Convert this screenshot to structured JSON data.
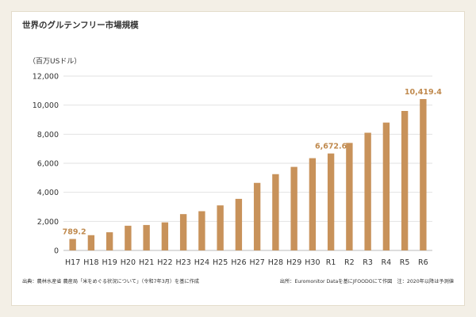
{
  "chart_data": {
    "type": "bar",
    "title": "世界のグルテンフリー市場規模",
    "ylabel": "（百万USドル）",
    "xlabel": "",
    "ylim": [
      0,
      12000
    ],
    "yticks": [
      0,
      2000,
      4000,
      6000,
      8000,
      10000,
      12000
    ],
    "ytick_labels": [
      "0",
      "2,000",
      "4,000",
      "6,000",
      "8,000",
      "10,000",
      "12,000"
    ],
    "grid": true,
    "legend": "none",
    "bar_color": "#c8925a",
    "label_color": "#c08a4e",
    "categories": [
      "H17",
      "H18",
      "H19",
      "H20",
      "H21",
      "H22",
      "H23",
      "H24",
      "H25",
      "H26",
      "H27",
      "H28",
      "H29",
      "H30",
      "R1",
      "R2",
      "R3",
      "R4",
      "R5",
      "R6"
    ],
    "values": [
      789.2,
      1050,
      1250,
      1700,
      1750,
      1930,
      2500,
      2700,
      3100,
      3550,
      4650,
      5250,
      5750,
      6350,
      6672.6,
      7400,
      8100,
      8800,
      9600,
      10419.4
    ],
    "data_labels": [
      {
        "index": 0,
        "text": "789.2"
      },
      {
        "index": 14,
        "text": "6,672.6"
      },
      {
        "index": 19,
        "text": "10,419.4"
      }
    ]
  },
  "footer": {
    "source_left": "出典：農林水産省 農産局「米をめぐる状況について」（令和7年3月）を基に作成",
    "source_right": "出所：Euromonitor Dataを基にJFOODOにて作図　注：2020年以降は予測値"
  }
}
